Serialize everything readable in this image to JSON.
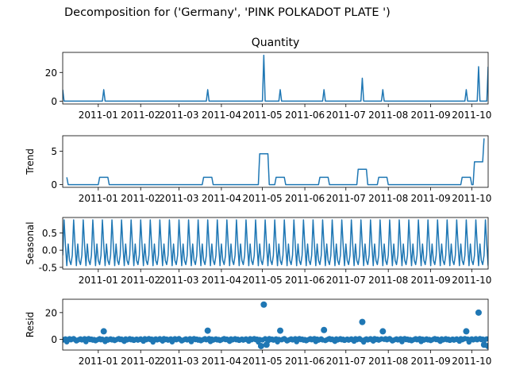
{
  "figure": {
    "title": "Decomposition for ('Germany', 'PINK  POLKADOT PLATE ')"
  },
  "chart_data": [
    {
      "type": "line",
      "title": "Quantity",
      "ylabel": "",
      "xlim": [
        "2010-12-06",
        "2011-10-13"
      ],
      "ylim": [
        -2,
        34
      ],
      "yticks": [
        0,
        20
      ],
      "xticks": [
        "2011-01",
        "2011-02",
        "2011-03",
        "2011-04",
        "2011-05",
        "2011-06",
        "2011-07",
        "2011-08",
        "2011-09",
        "2011-10"
      ],
      "x": [
        "2010-12-06",
        "2010-12-07",
        "2011-01-04",
        "2011-01-05",
        "2011-01-06",
        "2011-03-21",
        "2011-03-22",
        "2011-03-23",
        "2011-05-01",
        "2011-05-02",
        "2011-05-03",
        "2011-05-13",
        "2011-05-14",
        "2011-05-15",
        "2011-06-14",
        "2011-06-15",
        "2011-06-16",
        "2011-07-12",
        "2011-07-13",
        "2011-07-14",
        "2011-07-27",
        "2011-07-28",
        "2011-07-29",
        "2011-09-26",
        "2011-09-27",
        "2011-09-28",
        "2011-10-05",
        "2011-10-06",
        "2011-10-07",
        "2011-10-12",
        "2011-10-13"
      ],
      "values": [
        8,
        0,
        0,
        8,
        0,
        0,
        8,
        0,
        0,
        32,
        0,
        0,
        8,
        0,
        0,
        8,
        0,
        0,
        16,
        0,
        0,
        8,
        0,
        0,
        8,
        0,
        0,
        24,
        0,
        0,
        24
      ]
    },
    {
      "type": "line",
      "title": "",
      "ylabel": "Trend",
      "xlim": [
        "2010-12-06",
        "2011-10-13"
      ],
      "ylim": [
        -0.4,
        7.3
      ],
      "yticks": [
        0,
        5
      ],
      "xticks": [
        "2011-01",
        "2011-02",
        "2011-03",
        "2011-04",
        "2011-05",
        "2011-06",
        "2011-07",
        "2011-08",
        "2011-09",
        "2011-10"
      ],
      "x": [
        "2010-12-09",
        "2010-12-10",
        "2011-01-01",
        "2011-01-02",
        "2011-01-08",
        "2011-01-09",
        "2011-03-18",
        "2011-03-19",
        "2011-03-25",
        "2011-03-26",
        "2011-04-28",
        "2011-04-29",
        "2011-05-05",
        "2011-05-06",
        "2011-05-10",
        "2011-05-11",
        "2011-05-17",
        "2011-05-18",
        "2011-06-11",
        "2011-06-12",
        "2011-06-18",
        "2011-06-19",
        "2011-07-09",
        "2011-07-10",
        "2011-07-16",
        "2011-07-17",
        "2011-07-24",
        "2011-07-25",
        "2011-07-31",
        "2011-08-01",
        "2011-09-23",
        "2011-09-24",
        "2011-09-30",
        "2011-10-01",
        "2011-10-02",
        "2011-10-03",
        "2011-10-09",
        "2011-10-10"
      ],
      "values": [
        1.1,
        0,
        0,
        1.1,
        1.1,
        0,
        0,
        1.1,
        1.1,
        0,
        0,
        4.6,
        4.6,
        0,
        0,
        1.1,
        1.1,
        0,
        0,
        1.1,
        1.1,
        0,
        0,
        2.3,
        2.3,
        0,
        0,
        1.1,
        1.1,
        0,
        0,
        1.1,
        1.1,
        0,
        0,
        3.4,
        3.4,
        6.9
      ]
    },
    {
      "type": "line",
      "title": "",
      "ylabel": "Seasonal",
      "xlim": [
        "2010-12-06",
        "2011-10-13"
      ],
      "ylim": [
        -0.55,
        0.95
      ],
      "yticks": [
        -0.5,
        0.0,
        0.5
      ],
      "xticks": [
        "2011-01",
        "2011-02",
        "2011-03",
        "2011-04",
        "2011-05",
        "2011-06",
        "2011-07",
        "2011-08",
        "2011-09",
        "2011-10"
      ],
      "period_days": 7,
      "pattern": [
        -0.15,
        0.88,
        0.15,
        -0.45,
        0.18,
        -0.3,
        -0.42
      ]
    },
    {
      "type": "scatter",
      "title": "",
      "ylabel": "Resid",
      "xlim": [
        "2010-12-06",
        "2011-10-13"
      ],
      "ylim": [
        -8,
        30
      ],
      "yticks": [
        0,
        20
      ],
      "xticks": [
        "2011-01",
        "2011-02",
        "2011-03",
        "2011-04",
        "2011-05",
        "2011-06",
        "2011-07",
        "2011-08",
        "2011-09",
        "2011-10"
      ],
      "baseline": 0,
      "outliers": [
        {
          "x": "2011-01-05",
          "y": 6
        },
        {
          "x": "2011-03-22",
          "y": 6.5
        },
        {
          "x": "2011-05-02",
          "y": 26
        },
        {
          "x": "2011-05-14",
          "y": 6.5
        },
        {
          "x": "2011-06-15",
          "y": 7
        },
        {
          "x": "2011-07-13",
          "y": 13
        },
        {
          "x": "2011-07-28",
          "y": 6
        },
        {
          "x": "2011-09-27",
          "y": 6
        },
        {
          "x": "2011-10-06",
          "y": 20
        },
        {
          "x": "2011-04-30",
          "y": -5
        },
        {
          "x": "2011-05-04",
          "y": -4
        },
        {
          "x": "2011-10-10",
          "y": -4
        },
        {
          "x": "2011-10-13",
          "y": -5
        }
      ]
    }
  ],
  "colors": {
    "series": "#1f77b4",
    "axes": "#000000"
  }
}
